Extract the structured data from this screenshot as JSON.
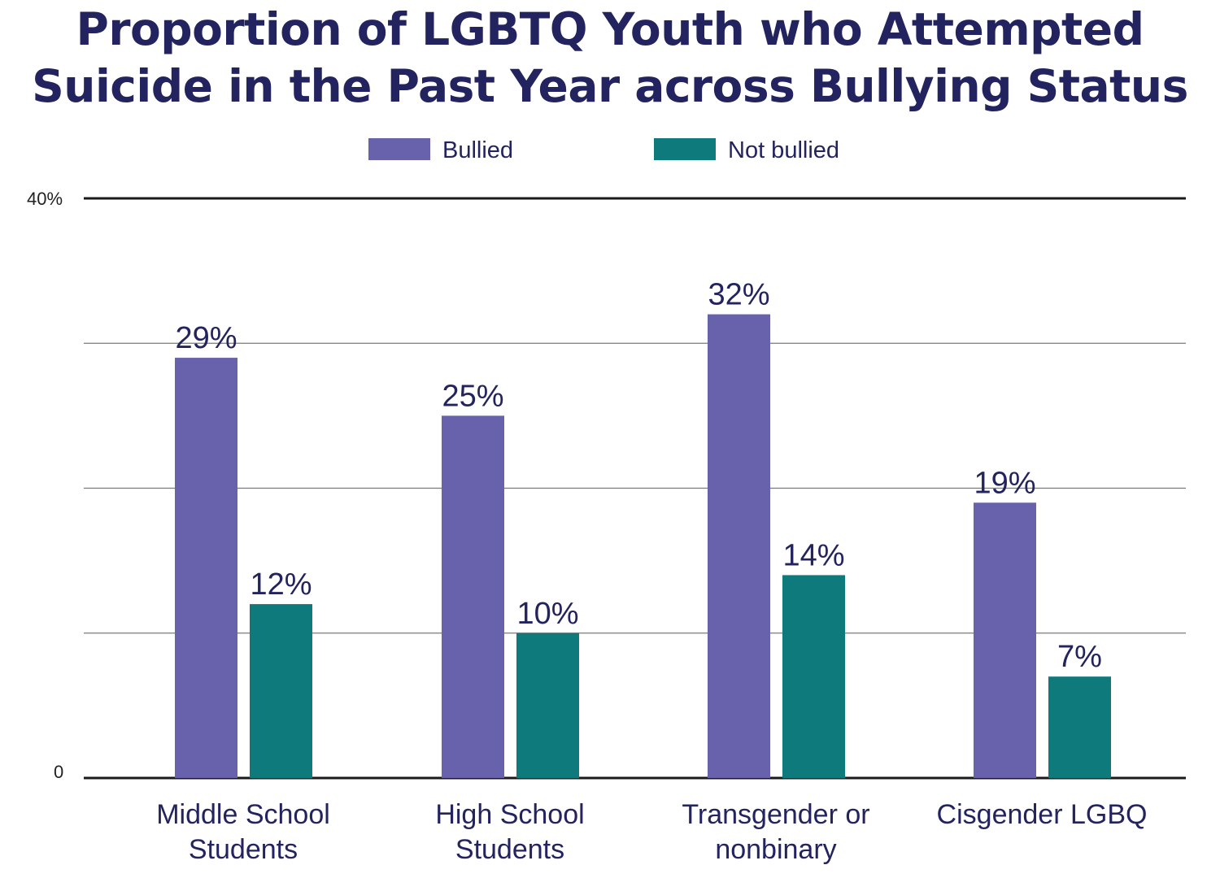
{
  "colors": {
    "bullied": "#6762ab",
    "not_bullied": "#0f7a7c",
    "text": "#23235f"
  },
  "chart_data": {
    "type": "bar",
    "title_line1": "Proportion of LGBTQ Youth who Attempted",
    "title_line2": "Suicide in the Past Year across Bullying Status",
    "categories": [
      [
        "Middle School",
        "Students"
      ],
      [
        "High School",
        "Students"
      ],
      [
        "Transgender or",
        "nonbinary"
      ],
      [
        "Cisgender LGBQ"
      ]
    ],
    "series": [
      {
        "name": "Bullied",
        "values": [
          29,
          25,
          32,
          19
        ],
        "labels": [
          "29%",
          "25%",
          "32%",
          "19%"
        ]
      },
      {
        "name": "Not bullied",
        "values": [
          12,
          10,
          14,
          7
        ],
        "labels": [
          "12%",
          "10%",
          "14%",
          "7%"
        ]
      }
    ],
    "ylim": [
      0,
      40
    ],
    "y_tick_labels": {
      "top": "40%",
      "bottom": "0"
    },
    "gridlines": [
      10,
      20,
      30
    ],
    "legend_position": "top-center"
  }
}
